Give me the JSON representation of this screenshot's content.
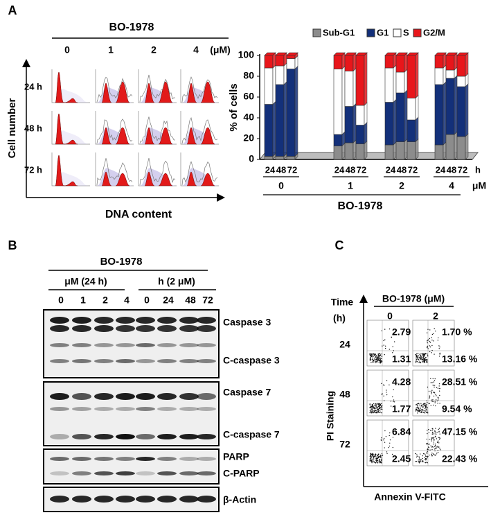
{
  "panel_a": {
    "label": "A",
    "histogram": {
      "title": "BO-1978",
      "doses": [
        "0",
        "1",
        "2",
        "4"
      ],
      "dose_unit": "(μM)",
      "times": [
        "24 h",
        "48 h",
        "72 h"
      ],
      "y_label": "Cell number",
      "x_label": "DNA content"
    }
  },
  "chart_data": {
    "type": "bar",
    "stacked": true,
    "y_label": "% of cells",
    "categories": [
      "24",
      "48",
      "72",
      "24",
      "48",
      "72",
      "24",
      "48",
      "72",
      "24",
      "48",
      "72"
    ],
    "groups": [
      "0",
      "1",
      "2",
      "4"
    ],
    "category_unit": "h",
    "group_unit": "μM",
    "x_label": "BO-1978",
    "ylim": [
      0,
      100
    ],
    "yticks": [
      0,
      20,
      40,
      60,
      80,
      100
    ],
    "series": [
      {
        "name": "Sub-G1",
        "color": "#8c8c8c",
        "values": [
          3,
          3,
          3,
          13,
          16,
          15,
          14,
          17,
          17,
          14,
          24,
          22
        ]
      },
      {
        "name": "G1",
        "color": "#13307a",
        "values": [
          50,
          69,
          84,
          11,
          35,
          18,
          41,
          47,
          21,
          58,
          54,
          48
        ]
      },
      {
        "name": "S",
        "color": "#ffffff",
        "values": [
          35,
          18,
          10,
          63,
          34,
          19,
          33,
          20,
          21,
          16,
          8,
          10
        ]
      },
      {
        "name": "G2/M",
        "color": "#e8161b",
        "values": [
          12,
          10,
          3,
          13,
          15,
          48,
          12,
          16,
          41,
          12,
          14,
          20
        ]
      }
    ]
  },
  "panel_b": {
    "label": "B",
    "title": "BO-1978",
    "groups": [
      "μM (24 h)",
      "h (2 μM)"
    ],
    "lanes": [
      "0",
      "1",
      "2",
      "4",
      "0",
      "24",
      "48",
      "72"
    ],
    "proteins": [
      "Caspase 3",
      "C-caspase 3",
      "Caspase 7",
      "C-caspase 7",
      "PARP",
      "C-PARP",
      "β-Actin"
    ]
  },
  "panel_c": {
    "label": "C",
    "time_label": "Time",
    "time_unit": "(h)",
    "title": "BO-1978 (μM)",
    "doses": [
      "0",
      "2"
    ],
    "y_label": "PI Staining",
    "x_label": "Annexin V-FITC",
    "rows": [
      {
        "time": "24",
        "upper": [
          "2.79 %",
          "1.70 %"
        ],
        "lower": [
          "1.31 %",
          "13.16 %"
        ]
      },
      {
        "time": "48",
        "upper": [
          "4.28 %",
          "28.51 %"
        ],
        "lower": [
          "1.77 %",
          "9.54 %"
        ]
      },
      {
        "time": "72",
        "upper": [
          "6.84 %",
          "47.15 %"
        ],
        "lower": [
          "2.45 %",
          "22.43 %"
        ]
      }
    ]
  }
}
